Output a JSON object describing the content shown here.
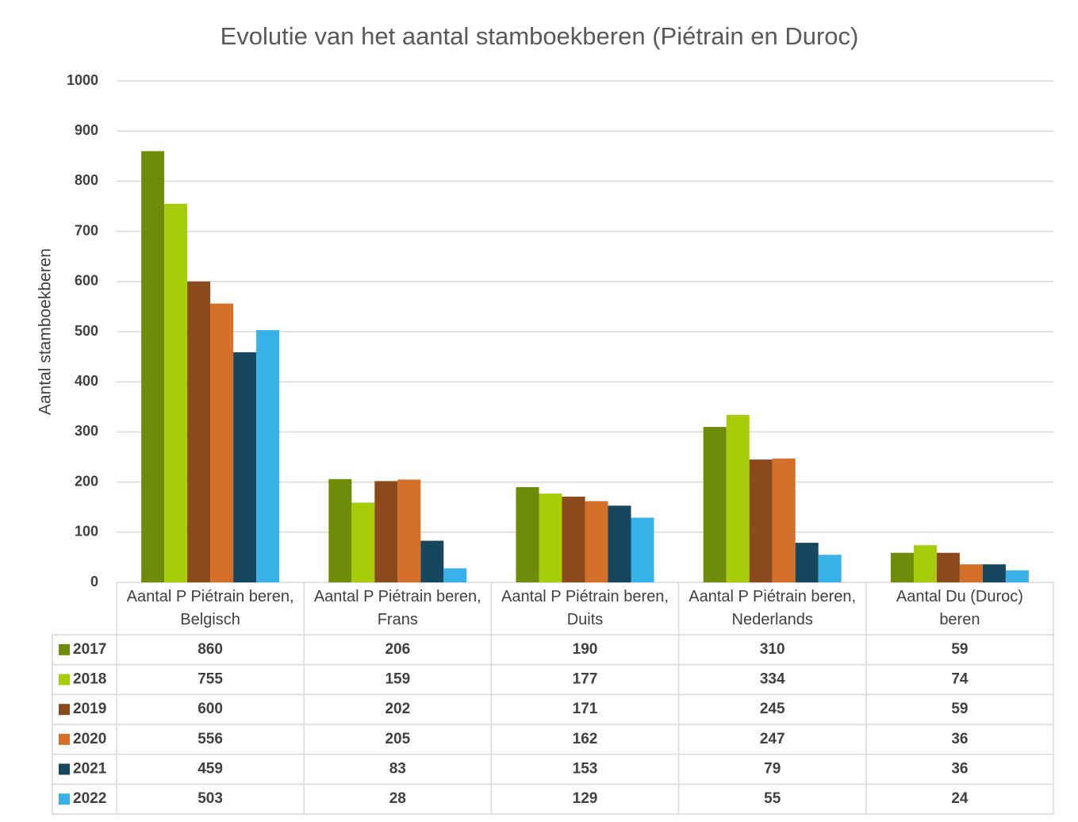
{
  "chart_data": {
    "type": "bar",
    "title": "Evolutie van het aantal stamboekberen (Piétrain en Duroc)",
    "y_label": "Aantal stamboekberen",
    "categories": [
      "Aantal P Piétrain beren, Belgisch",
      "Aantal P Piétrain beren, Frans",
      "Aantal P Piétrain beren, Duits",
      "Aantal P Piétrain beren, Nederlands",
      "Aantal Du (Duroc) beren"
    ],
    "series": [
      {
        "name": "2017",
        "color": "#6e8b0a",
        "values": [
          860,
          206,
          190,
          310,
          59
        ]
      },
      {
        "name": "2018",
        "color": "#a6cc0a",
        "values": [
          755,
          159,
          177,
          334,
          74
        ]
      },
      {
        "name": "2019",
        "color": "#8b4a1c",
        "values": [
          600,
          202,
          171,
          245,
          59
        ]
      },
      {
        "name": "2020",
        "color": "#d4702a",
        "values": [
          556,
          205,
          162,
          247,
          36
        ]
      },
      {
        "name": "2021",
        "color": "#17475e",
        "values": [
          459,
          83,
          153,
          79,
          36
        ]
      },
      {
        "name": "2022",
        "color": "#38b2e8",
        "values": [
          503,
          28,
          129,
          55,
          24
        ]
      }
    ],
    "ylim": [
      0,
      1000
    ],
    "yticks": [
      0,
      100,
      200,
      300,
      400,
      500,
      600,
      700,
      800,
      900,
      1000
    ],
    "grid": true
  }
}
